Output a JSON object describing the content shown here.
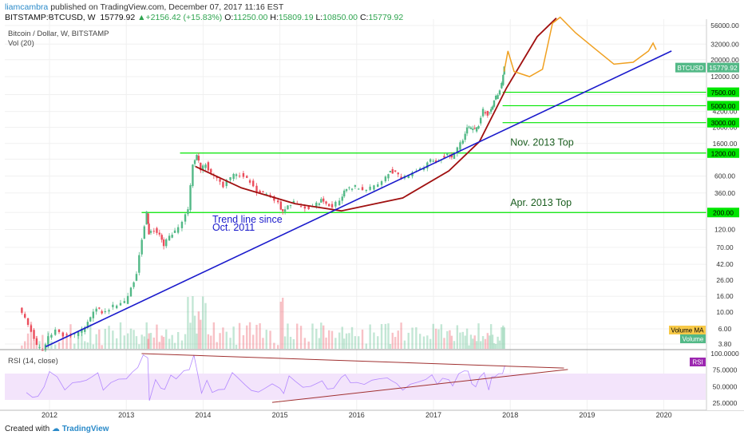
{
  "header": {
    "author": "liamcambra",
    "published": "published on TradingView.com, December 07, 2017 11:16 EST",
    "symbol": "BITSTAMP:BTCUSD, W",
    "last": "15779.92",
    "change": "+2156.42 (+15.83%)",
    "o_label": "O:",
    "o": "11250.00",
    "h_label": "H:",
    "h": "15809.19",
    "l_label": "L:",
    "l": "10850.00",
    "c_label": "C:",
    "c": "15779.92"
  },
  "legend": {
    "main": "Bitcoin / Dollar, W, BITSTAMP",
    "vol": "Vol (20)",
    "rsi": "RSI (14, close)"
  },
  "footer": {
    "created_with": "Created with",
    "brand": "TradingView"
  },
  "colors": {
    "up": "#53b987",
    "down": "#eb4d5c",
    "level": "#00e600",
    "trend": "#1a1acc",
    "curve": "#a01010",
    "projection": "#f0a020",
    "rsi_line": "#b388ff",
    "rsi_band": "#f3e4fb"
  },
  "chart_data": {
    "type": "candlestick",
    "scale": "log",
    "price_ticks": [
      3.8,
      6,
      10,
      16,
      26,
      42,
      70,
      120,
      200,
      360,
      600,
      1000,
      1600,
      2600,
      4200,
      7000,
      12000,
      20000,
      32000,
      56000
    ],
    "price_tick_labels": [
      "3.80",
      "6.00",
      "10.00",
      "16.00",
      "26.00",
      "42.00",
      "70.00",
      "120.00",
      "",
      "360.00",
      "600.00",
      "",
      "1600.00",
      "2600.00",
      "4200.00",
      "",
      "12000.00",
      "20000.00",
      "32000.00",
      "56000.00"
    ],
    "x_labels": [
      "2012",
      "2013",
      "2014",
      "2015",
      "2016",
      "2017",
      "2018",
      "2019",
      "2020"
    ],
    "x_label_years": [
      2012,
      2013,
      2014,
      2015,
      2016,
      2017,
      2018,
      2019,
      2020
    ],
    "levels": [
      {
        "value": 200,
        "label": "200.00"
      },
      {
        "value": 1200,
        "label": "1200.00"
      },
      {
        "value": 3000,
        "label": "3000.00"
      },
      {
        "value": 5000,
        "label": "5000.00"
      },
      {
        "value": 7500,
        "label": "7500.00"
      }
    ],
    "annotations": [
      {
        "text": "Nov. 2013 Top",
        "date": 2018.0,
        "price": 1500
      },
      {
        "text": "Apr. 2013 Top",
        "date": 2018.0,
        "price": 245
      },
      {
        "text": "Trend line since",
        "date": 2014.12,
        "price": 148
      },
      {
        "text": "Oct. 2011",
        "date": 2014.12,
        "price": 115
      }
    ],
    "trendline": {
      "from": {
        "date": 2011.95,
        "price": 3.5
      },
      "to": {
        "date": 2020.1,
        "price": 26000
      }
    },
    "curve_points": [
      [
        2013.9,
        800
      ],
      [
        2014.5,
        420
      ],
      [
        2015.2,
        260
      ],
      [
        2015.8,
        210
      ],
      [
        2016.6,
        310
      ],
      [
        2017.2,
        700
      ],
      [
        2017.6,
        1700
      ],
      [
        2017.95,
        8500
      ],
      [
        2018.35,
        40000
      ],
      [
        2018.6,
        70000
      ]
    ],
    "projection_points": [
      [
        2017.92,
        14000
      ],
      [
        2017.97,
        26000
      ],
      [
        2018.05,
        14000
      ],
      [
        2018.25,
        12000
      ],
      [
        2018.42,
        15000
      ],
      [
        2018.55,
        60000
      ],
      [
        2018.65,
        72000
      ],
      [
        2018.85,
        45000
      ],
      [
        2019.1,
        28000
      ],
      [
        2019.35,
        17500
      ],
      [
        2019.6,
        18500
      ],
      [
        2019.8,
        26000
      ],
      [
        2019.86,
        33000
      ],
      [
        2019.9,
        27000
      ]
    ],
    "price_series": [
      [
        2011.62,
        12
      ],
      [
        2011.7,
        8
      ],
      [
        2011.78,
        5.5
      ],
      [
        2011.85,
        3.5
      ],
      [
        2011.93,
        3.2
      ],
      [
        2012.0,
        4.8
      ],
      [
        2012.1,
        5.8
      ],
      [
        2012.2,
        5.0
      ],
      [
        2012.3,
        4.9
      ],
      [
        2012.4,
        5.2
      ],
      [
        2012.48,
        6.4
      ],
      [
        2012.55,
        8.5
      ],
      [
        2012.63,
        11.3
      ],
      [
        2012.7,
        10.0
      ],
      [
        2012.8,
        11.0
      ],
      [
        2012.9,
        12.8
      ],
      [
        2013.0,
        13.5
      ],
      [
        2013.08,
        20
      ],
      [
        2013.15,
        33
      ],
      [
        2013.22,
        90
      ],
      [
        2013.28,
        200
      ],
      [
        2013.3,
        110
      ],
      [
        2013.38,
        120
      ],
      [
        2013.45,
        100
      ],
      [
        2013.5,
        75
      ],
      [
        2013.58,
        95
      ],
      [
        2013.65,
        110
      ],
      [
        2013.75,
        150
      ],
      [
        2013.82,
        220
      ],
      [
        2013.88,
        900
      ],
      [
        2013.93,
        1100
      ],
      [
        2013.98,
        750
      ],
      [
        2014.05,
        870
      ],
      [
        2014.12,
        650
      ],
      [
        2014.2,
        560
      ],
      [
        2014.28,
        450
      ],
      [
        2014.38,
        580
      ],
      [
        2014.45,
        640
      ],
      [
        2014.55,
        600
      ],
      [
        2014.63,
        500
      ],
      [
        2014.72,
        380
      ],
      [
        2014.8,
        350
      ],
      [
        2014.9,
        340
      ],
      [
        2015.0,
        270
      ],
      [
        2015.05,
        200
      ],
      [
        2015.12,
        240
      ],
      [
        2015.2,
        270
      ],
      [
        2015.3,
        235
      ],
      [
        2015.4,
        230
      ],
      [
        2015.5,
        255
      ],
      [
        2015.55,
        290
      ],
      [
        2015.62,
        260
      ],
      [
        2015.7,
        235
      ],
      [
        2015.8,
        290
      ],
      [
        2015.85,
        380
      ],
      [
        2015.92,
        420
      ],
      [
        2016.0,
        430
      ],
      [
        2016.1,
        390
      ],
      [
        2016.2,
        415
      ],
      [
        2016.3,
        450
      ],
      [
        2016.4,
        580
      ],
      [
        2016.45,
        700
      ],
      [
        2016.52,
        650
      ],
      [
        2016.6,
        575
      ],
      [
        2016.7,
        610
      ],
      [
        2016.8,
        700
      ],
      [
        2016.9,
        780
      ],
      [
        2016.98,
        980
      ],
      [
        2017.05,
        920
      ],
      [
        2017.12,
        1050
      ],
      [
        2017.2,
        1150
      ],
      [
        2017.25,
        1050
      ],
      [
        2017.33,
        1350
      ],
      [
        2017.4,
        1850
      ],
      [
        2017.45,
        2600
      ],
      [
        2017.5,
        2500
      ],
      [
        2017.55,
        2400
      ],
      [
        2017.6,
        2800
      ],
      [
        2017.66,
        4300
      ],
      [
        2017.72,
        3800
      ],
      [
        2017.76,
        4500
      ],
      [
        2017.8,
        5700
      ],
      [
        2017.85,
        7200
      ],
      [
        2017.9,
        9500
      ],
      [
        2017.93,
        15800
      ]
    ],
    "rsi": {
      "ticks": [
        25,
        50,
        75,
        100
      ],
      "tick_labels": [
        "25.0000",
        "50.0000",
        "75.0000",
        "100.0000"
      ],
      "band": [
        30,
        70
      ],
      "upper_line": [
        [
          2013.2,
          100
        ],
        [
          2018.7,
          78
        ]
      ],
      "lower_line": [
        [
          2014.9,
          26
        ],
        [
          2018.75,
          76
        ]
      ]
    },
    "badges": {
      "symbol": "BTCUSD",
      "last": "15779.92",
      "volume_ma": "Volume MA",
      "volume": "Volume",
      "rsi": "RSI"
    }
  }
}
